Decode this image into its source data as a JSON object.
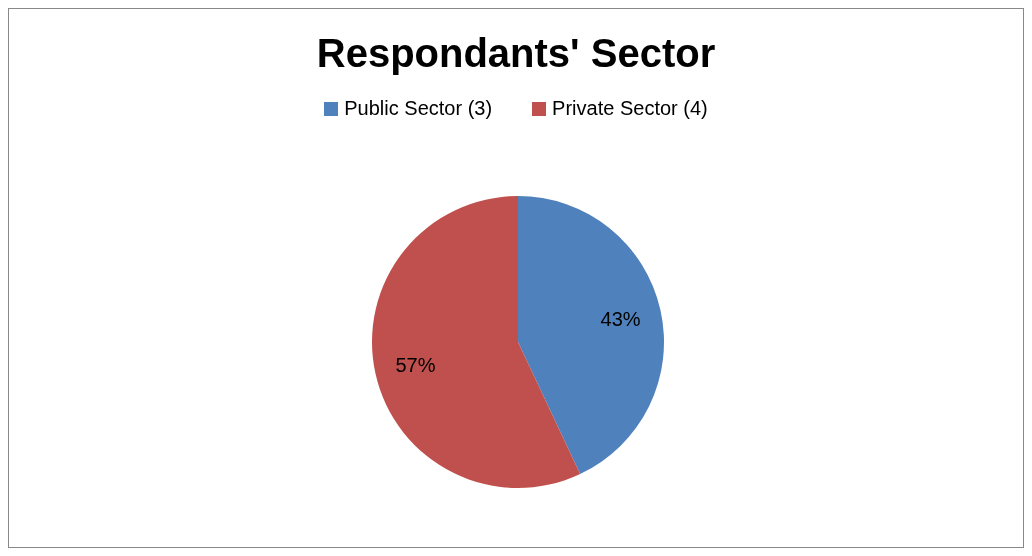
{
  "chart_data": {
    "type": "pie",
    "title": "Respondants' Sector",
    "categories": [
      "Public Sector (3)",
      "Private Sector (4)"
    ],
    "values": [
      43,
      57
    ],
    "colors": [
      "#4f81bd",
      "#c0504d"
    ],
    "value_labels": [
      "43%",
      "57%"
    ],
    "legend": "top"
  }
}
